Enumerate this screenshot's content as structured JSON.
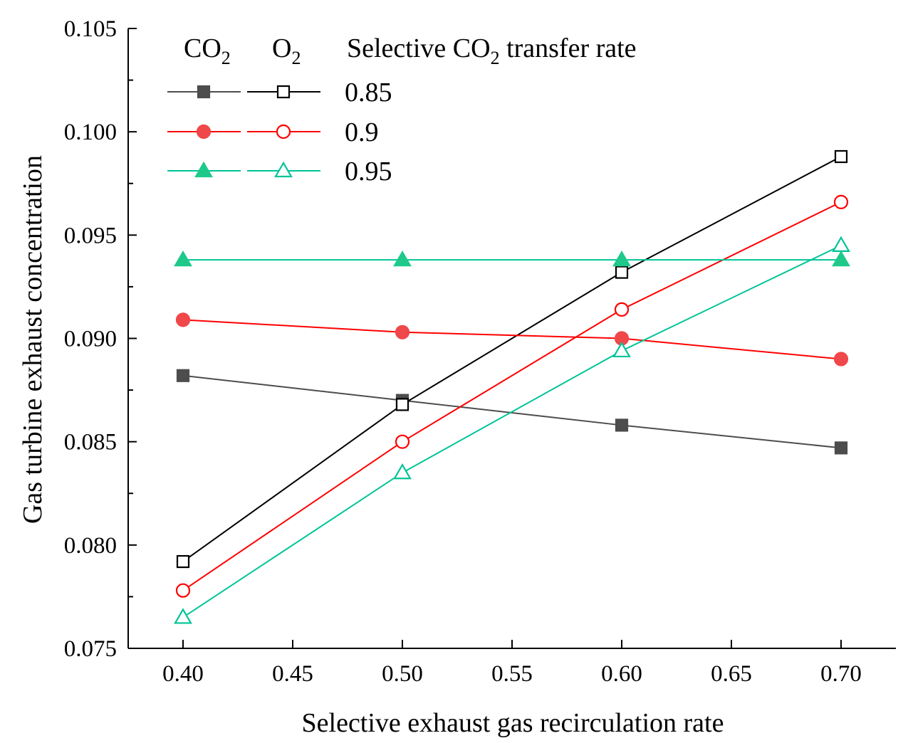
{
  "chart_data": {
    "type": "line",
    "xlabel": "Selective exhaust gas recirculation rate",
    "ylabel": "Gas turbine exhaust concentration",
    "xlim": [
      0.375,
      0.725
    ],
    "ylim": [
      0.075,
      0.105
    ],
    "x_ticks": [
      "0.40",
      "0.45",
      "0.50",
      "0.55",
      "0.60",
      "0.65",
      "0.70"
    ],
    "y_ticks": [
      "0.075",
      "0.080",
      "0.085",
      "0.090",
      "0.095",
      "0.100",
      "0.105"
    ],
    "x": [
      0.4,
      0.5,
      0.6,
      0.7
    ],
    "legend": {
      "header_co2": "CO",
      "header_o2": "O",
      "subscript": "2",
      "header_rate_prefix": "Selective CO",
      "header_rate_suffix": " transfer rate",
      "rates": [
        "0.85",
        "0.9",
        "0.95"
      ]
    },
    "series": [
      {
        "name": "CO2 0.85",
        "gas": "CO2",
        "rate": "0.85",
        "marker": "square",
        "filled": true,
        "color": "#4d4d4d",
        "marker_color": "#4d4d4d",
        "values": [
          0.0882,
          0.087,
          0.0858,
          0.0847
        ]
      },
      {
        "name": "O2 0.85",
        "gas": "O2",
        "rate": "0.85",
        "marker": "square",
        "filled": false,
        "color": "#000000",
        "marker_color": "#000000",
        "values": [
          0.0792,
          0.0868,
          0.0932,
          0.0988
        ]
      },
      {
        "name": "CO2 0.9",
        "gas": "CO2",
        "rate": "0.9",
        "marker": "circle",
        "filled": true,
        "color": "#ff0000",
        "marker_color": "#f0474a",
        "values": [
          0.0909,
          0.0903,
          0.09,
          0.089
        ]
      },
      {
        "name": "O2 0.9",
        "gas": "O2",
        "rate": "0.9",
        "marker": "circle",
        "filled": false,
        "color": "#ff0000",
        "marker_color": "#ff0000",
        "values": [
          0.0778,
          0.085,
          0.0914,
          0.0966
        ]
      },
      {
        "name": "CO2 0.95",
        "gas": "CO2",
        "rate": "0.95",
        "marker": "triangle",
        "filled": true,
        "color": "#00c497",
        "marker_color": "#1ec98a",
        "values": [
          0.0938,
          0.0938,
          0.0938,
          0.0938
        ]
      },
      {
        "name": "O2 0.95",
        "gas": "O2",
        "rate": "0.95",
        "marker": "triangle",
        "filled": false,
        "color": "#00c497",
        "marker_color": "#00c497",
        "values": [
          0.0765,
          0.0835,
          0.0894,
          0.0945
        ]
      }
    ]
  }
}
